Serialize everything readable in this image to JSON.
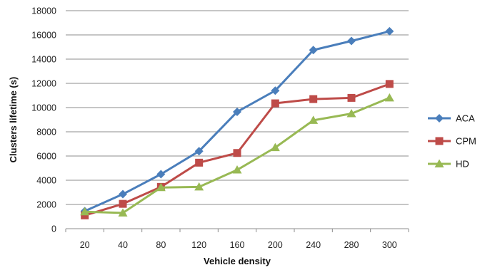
{
  "chart_data": {
    "type": "line",
    "title": "",
    "xlabel": "Vehicle density",
    "ylabel": "Clusters lifetime (s)",
    "categories": [
      "20",
      "40",
      "80",
      "120",
      "160",
      "200",
      "240",
      "280",
      "300"
    ],
    "ylim": [
      0,
      18000
    ],
    "yticks": [
      0,
      2000,
      4000,
      6000,
      8000,
      10000,
      12000,
      14000,
      16000,
      18000
    ],
    "grid": true,
    "legend_position": "right",
    "series": [
      {
        "name": "ACA",
        "color": "#4a7ebb",
        "marker": "diamond",
        "values": [
          1450,
          2850,
          4500,
          6400,
          9650,
          11400,
          14750,
          15500,
          16300
        ]
      },
      {
        "name": "CPM",
        "color": "#be4b48",
        "marker": "square",
        "values": [
          1100,
          2050,
          3450,
          5450,
          6250,
          10350,
          10700,
          10800,
          11950
        ]
      },
      {
        "name": "HD",
        "color": "#98b954",
        "marker": "triangle",
        "values": [
          1400,
          1300,
          3400,
          3450,
          4850,
          6700,
          8950,
          9500,
          10800
        ]
      }
    ]
  }
}
